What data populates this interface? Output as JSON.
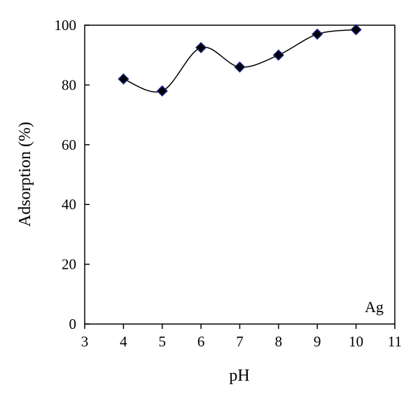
{
  "chart_data": {
    "type": "scatter",
    "xlabel": "pH",
    "ylabel": "Adsorption (%)",
    "xlim": [
      3,
      11
    ],
    "ylim": [
      0,
      100
    ],
    "xticks": [
      3,
      4,
      5,
      6,
      7,
      8,
      9,
      10,
      11
    ],
    "yticks": [
      0,
      20,
      40,
      60,
      80,
      100
    ],
    "grid": false,
    "annotation": "Ag",
    "smooth_line": true,
    "marker": "diamond",
    "colors": {
      "marker_fill": "#000000",
      "marker_edge": "#1a237e",
      "line": "#000000"
    },
    "series": [
      {
        "x": [
          4,
          5,
          6,
          7,
          8,
          9,
          10
        ],
        "y": [
          82,
          78,
          92.5,
          86,
          90,
          97,
          98.5
        ]
      }
    ]
  }
}
